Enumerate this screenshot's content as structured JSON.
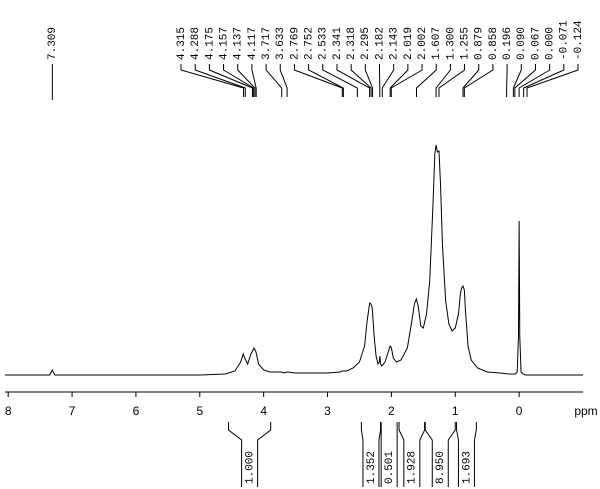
{
  "chart_data": {
    "type": "line",
    "x_label": "ppm",
    "color": "#000000",
    "xlim": [
      8.05,
      -1.0
    ],
    "ylim": [
      0,
      260
    ],
    "xticks": [
      8,
      7,
      6,
      5,
      4,
      3,
      2,
      1,
      0
    ],
    "x": [
      8.05,
      7.5,
      7.35,
      7.31,
      7.27,
      7.0,
      6.0,
      5.0,
      4.6,
      4.45,
      4.36,
      4.32,
      4.29,
      4.25,
      4.2,
      4.15,
      4.12,
      4.08,
      4.0,
      3.9,
      3.72,
      3.68,
      3.63,
      3.5,
      3.0,
      2.8,
      2.77,
      2.7,
      2.6,
      2.5,
      2.42,
      2.38,
      2.34,
      2.32,
      2.3,
      2.27,
      2.24,
      2.21,
      2.19,
      2.18,
      2.17,
      2.15,
      2.1,
      2.05,
      2.02,
      2.0,
      1.97,
      1.92,
      1.85,
      1.75,
      1.68,
      1.64,
      1.61,
      1.58,
      1.54,
      1.5,
      1.45,
      1.4,
      1.35,
      1.32,
      1.3,
      1.28,
      1.255,
      1.23,
      1.2,
      1.15,
      1.1,
      1.05,
      1.0,
      0.95,
      0.92,
      0.9,
      0.879,
      0.858,
      0.84,
      0.8,
      0.75,
      0.65,
      0.5,
      0.3,
      0.15,
      0.06,
      0.03,
      0.01,
      0.0,
      -0.01,
      -0.03,
      -0.06,
      -0.1,
      -0.124,
      -0.3,
      -0.6,
      -1.0
    ],
    "values": [
      1,
      1,
      1,
      6,
      1,
      1,
      1,
      1,
      2,
      5,
      14,
      22,
      17,
      12,
      22,
      28,
      24,
      12,
      6,
      4,
      4,
      3,
      4,
      3,
      3,
      4,
      5,
      5,
      8,
      14,
      30,
      55,
      73,
      72,
      68,
      40,
      20,
      12,
      14,
      20,
      12,
      10,
      14,
      24,
      30,
      28,
      18,
      14,
      16,
      28,
      55,
      72,
      77,
      70,
      50,
      48,
      62,
      95,
      170,
      222,
      231,
      224,
      225,
      190,
      130,
      75,
      52,
      45,
      48,
      62,
      82,
      88,
      90,
      86,
      65,
      30,
      16,
      8,
      4,
      3,
      2,
      2,
      4,
      40,
      155,
      40,
      4,
      2,
      1,
      1,
      1,
      1,
      1
    ],
    "peaks": [
      {
        "value": 7.309,
        "label": "7.309"
      },
      {
        "value": 4.315,
        "label": "4.315"
      },
      {
        "value": 4.288,
        "label": "4.288"
      },
      {
        "value": 4.175,
        "label": "4.175"
      },
      {
        "value": 4.157,
        "label": "4.157"
      },
      {
        "value": 4.137,
        "label": "4.137"
      },
      {
        "value": 4.117,
        "label": "4.117"
      },
      {
        "value": 3.717,
        "label": "3.717"
      },
      {
        "value": 3.633,
        "label": "3.633"
      },
      {
        "value": 2.769,
        "label": "2.769"
      },
      {
        "value": 2.752,
        "label": "2.752"
      },
      {
        "value": 2.533,
        "label": "2.533"
      },
      {
        "value": 2.341,
        "label": "2.341"
      },
      {
        "value": 2.318,
        "label": "2.318"
      },
      {
        "value": 2.295,
        "label": "2.295"
      },
      {
        "value": 2.182,
        "label": "2.182"
      },
      {
        "value": 2.143,
        "label": "2.143"
      },
      {
        "value": 2.019,
        "label": "2.019"
      },
      {
        "value": 2.002,
        "label": "2.002"
      },
      {
        "value": 1.607,
        "label": "1.607"
      },
      {
        "value": 1.3,
        "label": "1.300"
      },
      {
        "value": 1.255,
        "label": "1.255"
      },
      {
        "value": 0.879,
        "label": "0.879"
      },
      {
        "value": 0.858,
        "label": "0.858"
      },
      {
        "value": 0.196,
        "label": "0.196"
      },
      {
        "value": 0.09,
        "label": "0.090"
      },
      {
        "value": 0.067,
        "label": "0.067"
      },
      {
        "value": 0,
        "label": "0.000"
      },
      {
        "value": -0.071,
        "label": "-0.071"
      },
      {
        "value": -0.124,
        "label": "-0.124"
      }
    ],
    "integrals": [
      {
        "value": 1,
        "label": "1.000",
        "from": 4.55,
        "to": 3.89
      },
      {
        "value": 1.352,
        "label": "1.352",
        "from": 2.47,
        "to": 2.17
      },
      {
        "value": 0.501,
        "label": "0.501",
        "from": 2.16,
        "to": 1.91
      },
      {
        "value": 1.928,
        "label": "1.928",
        "from": 1.88,
        "to": 1.48
      },
      {
        "value": 8.95,
        "label": "8.950",
        "from": 1.47,
        "to": 1.0
      },
      {
        "value": 1.693,
        "label": "1.693",
        "from": 0.98,
        "to": 0.67
      }
    ]
  }
}
